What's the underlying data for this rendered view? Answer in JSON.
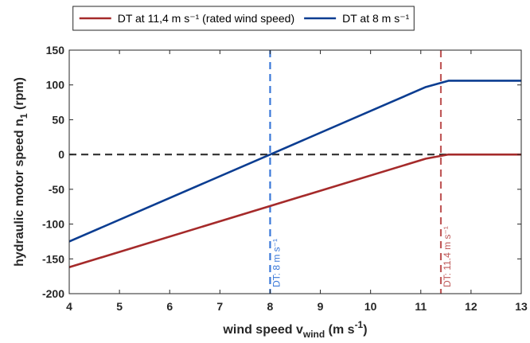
{
  "chart_data": {
    "type": "line",
    "xlabel": {
      "main": "wind speed v",
      "sub": "wind",
      "rest": " (m s",
      "sup": "-1",
      "end": ")"
    },
    "ylabel": {
      "main": "hydraulic motor speed n",
      "sub": "1",
      "rest": " (rpm)"
    },
    "xlim": [
      4,
      13
    ],
    "ylim": [
      -200,
      150
    ],
    "xticks": [
      "4",
      "5",
      "6",
      "7",
      "8",
      "9",
      "10",
      "11",
      "12",
      "13"
    ],
    "yticks": [
      "-200",
      "-150",
      "-100",
      "-50",
      "0",
      "50",
      "100",
      "150"
    ],
    "grid": false,
    "legend_position": "top-outside",
    "series": [
      {
        "name": "DT at 11,4 m s⁻¹ (rated wind speed)",
        "color": "#a52a2a",
        "x": [
          4,
          8,
          11.1,
          11.4,
          11.55,
          13
        ],
        "y": [
          -162,
          -74,
          -6,
          -2,
          0,
          0
        ]
      },
      {
        "name": "DT at 8 m s⁻¹",
        "color": "#0b3d91",
        "x": [
          4,
          8,
          11.1,
          11.4,
          11.55,
          13
        ],
        "y": [
          -125,
          0,
          97,
          103,
          106,
          106
        ]
      }
    ],
    "reference_lines": [
      {
        "orientation": "horizontal",
        "value": 0,
        "color": "#3a3a3a",
        "style": "dashed"
      },
      {
        "orientation": "vertical",
        "value": 8,
        "color": "#3a78d8",
        "style": "dashed",
        "label": "DT: 8 m s⁻¹"
      },
      {
        "orientation": "vertical",
        "value": 11.4,
        "color": "#c05a5a",
        "style": "dashed",
        "label": "DT: 11.4 m s⁻¹"
      }
    ]
  }
}
